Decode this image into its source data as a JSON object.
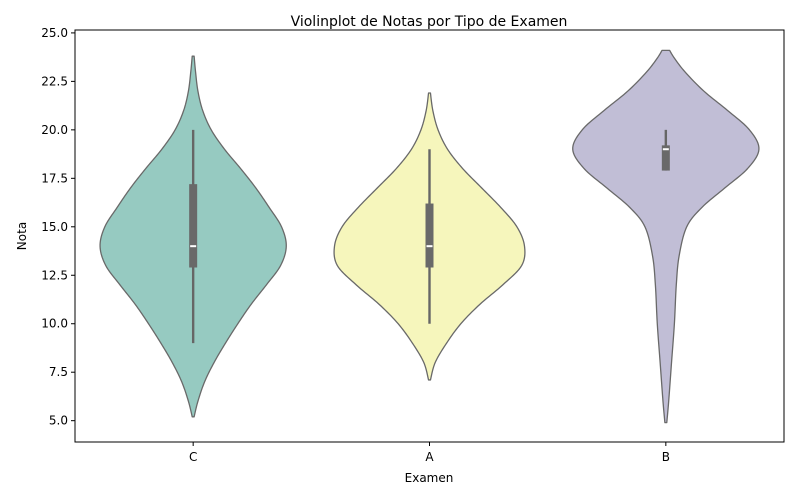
{
  "chart_data": {
    "type": "violin",
    "title": "Violinplot de Notas por Tipo de Examen",
    "xlabel": "Examen",
    "ylabel": "Nota",
    "ylim": [
      3.9,
      25.15
    ],
    "yticks": [
      5.0,
      7.5,
      10.0,
      12.5,
      15.0,
      17.5,
      20.0,
      22.5,
      25.0
    ],
    "ytick_labels": [
      "5.0",
      "7.5",
      "10.0",
      "12.5",
      "15.0",
      "17.5",
      "20.0",
      "22.5",
      "25.0"
    ],
    "categories": [
      "C",
      "A",
      "B"
    ],
    "grid": false,
    "series": [
      {
        "category": "C",
        "color": "#96cac1",
        "kde_min": 5.2,
        "kde_max": 23.8,
        "whisker_low": 9.0,
        "q1": 12.9,
        "median": 14.0,
        "q3": 17.2,
        "whisker_high": 20.0,
        "density": [
          [
            5.2,
            0.01
          ],
          [
            6.0,
            0.05
          ],
          [
            7.0,
            0.12
          ],
          [
            8.0,
            0.22
          ],
          [
            9.0,
            0.34
          ],
          [
            10.0,
            0.47
          ],
          [
            11.0,
            0.61
          ],
          [
            12.0,
            0.77
          ],
          [
            13.0,
            0.92
          ],
          [
            14.0,
            0.98
          ],
          [
            15.0,
            0.93
          ],
          [
            16.0,
            0.8
          ],
          [
            17.0,
            0.66
          ],
          [
            18.0,
            0.5
          ],
          [
            19.0,
            0.33
          ],
          [
            20.0,
            0.19
          ],
          [
            21.0,
            0.1
          ],
          [
            22.0,
            0.05
          ],
          [
            23.0,
            0.025
          ],
          [
            23.8,
            0.01
          ]
        ]
      },
      {
        "category": "A",
        "color": "#f6f6bc",
        "kde_min": 7.1,
        "kde_max": 21.9,
        "whisker_low": 10.0,
        "q1": 12.9,
        "median": 14.0,
        "q3": 16.2,
        "whisker_high": 19.0,
        "density": [
          [
            7.1,
            0.01
          ],
          [
            8.0,
            0.06
          ],
          [
            9.0,
            0.18
          ],
          [
            10.0,
            0.33
          ],
          [
            11.0,
            0.53
          ],
          [
            12.0,
            0.77
          ],
          [
            13.0,
            0.97
          ],
          [
            14.0,
            1.0
          ],
          [
            15.0,
            0.92
          ],
          [
            16.0,
            0.75
          ],
          [
            17.0,
            0.55
          ],
          [
            18.0,
            0.35
          ],
          [
            19.0,
            0.19
          ],
          [
            20.0,
            0.09
          ],
          [
            21.0,
            0.035
          ],
          [
            21.9,
            0.01
          ]
        ]
      },
      {
        "category": "B",
        "color": "#c1bed6",
        "kde_min": 4.9,
        "kde_max": 24.1,
        "whisker_low": 17.9,
        "q1": 17.9,
        "median": 19.0,
        "q3": 19.2,
        "whisker_high": 20.0,
        "density": [
          [
            4.9,
            0.01
          ],
          [
            6.0,
            0.03
          ],
          [
            8.0,
            0.06
          ],
          [
            10.0,
            0.09
          ],
          [
            12.0,
            0.11
          ],
          [
            13.5,
            0.14
          ],
          [
            15.0,
            0.22
          ],
          [
            16.0,
            0.38
          ],
          [
            17.0,
            0.62
          ],
          [
            18.0,
            0.86
          ],
          [
            19.0,
            0.98
          ],
          [
            20.0,
            0.88
          ],
          [
            21.0,
            0.65
          ],
          [
            22.0,
            0.4
          ],
          [
            23.0,
            0.2
          ],
          [
            23.7,
            0.09
          ],
          [
            24.1,
            0.04
          ]
        ]
      }
    ]
  }
}
